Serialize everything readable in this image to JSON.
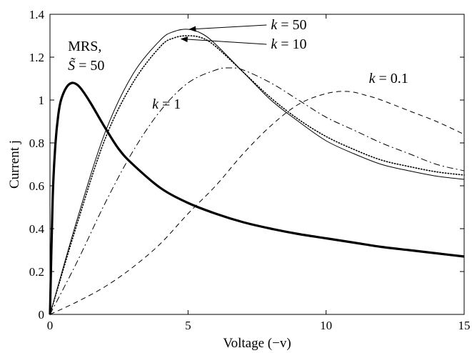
{
  "chart_data": {
    "type": "line",
    "xlabel": "Voltage (−v)",
    "ylabel": "Current j",
    "xlim": [
      0,
      15
    ],
    "ylim": [
      0,
      1.4
    ],
    "xticks": [
      "0",
      "5",
      "10",
      "15"
    ],
    "yticks": [
      "0",
      "0.2",
      "0.4",
      "0.6",
      "0.8",
      "1",
      "1.2",
      "1.4"
    ],
    "grid": false,
    "legend": "none",
    "series": [
      {
        "name": "MRS, S̃ = 50",
        "style": "thick-solid",
        "x": [
          0,
          0.1,
          0.2,
          0.3,
          0.4,
          0.6,
          0.8,
          1.0,
          1.2,
          1.5,
          2.0,
          2.5,
          3.0,
          4.0,
          5.0,
          6.0,
          7.0,
          8.0,
          9.0,
          10.0,
          11.0,
          12.0,
          13.0,
          14.0,
          15.0
        ],
        "y": [
          0,
          0.55,
          0.8,
          0.93,
          1.0,
          1.06,
          1.08,
          1.07,
          1.04,
          0.98,
          0.87,
          0.77,
          0.7,
          0.59,
          0.52,
          0.47,
          0.43,
          0.4,
          0.375,
          0.355,
          0.335,
          0.315,
          0.3,
          0.285,
          0.27
        ]
      },
      {
        "name": "k = 50",
        "style": "thin-solid",
        "x": [
          0,
          1,
          2,
          3,
          4,
          4.5,
          5,
          5.5,
          6,
          7,
          8,
          9,
          10,
          11,
          12,
          13,
          14,
          15
        ],
        "y": [
          0,
          0.45,
          0.85,
          1.12,
          1.28,
          1.32,
          1.33,
          1.31,
          1.26,
          1.13,
          1.0,
          0.9,
          0.81,
          0.75,
          0.7,
          0.67,
          0.645,
          0.63
        ]
      },
      {
        "name": "k = 10",
        "style": "dotted",
        "x": [
          0,
          1,
          2,
          3,
          4,
          4.5,
          5,
          5.5,
          6,
          7,
          8,
          9,
          10,
          11,
          12,
          13,
          14,
          15
        ],
        "y": [
          0,
          0.43,
          0.82,
          1.08,
          1.25,
          1.29,
          1.3,
          1.29,
          1.25,
          1.13,
          1.01,
          0.91,
          0.83,
          0.77,
          0.72,
          0.69,
          0.665,
          0.65
        ]
      },
      {
        "name": "k = 1",
        "style": "dash-dot",
        "x": [
          0,
          1,
          2,
          3,
          4,
          5,
          6,
          6.5,
          7,
          8,
          9,
          10,
          11,
          12,
          13,
          14,
          15
        ],
        "y": [
          0,
          0.25,
          0.52,
          0.76,
          0.95,
          1.08,
          1.14,
          1.15,
          1.14,
          1.08,
          1.0,
          0.92,
          0.86,
          0.8,
          0.75,
          0.7,
          0.67
        ]
      },
      {
        "name": "k = 0.1",
        "style": "dashed",
        "x": [
          0,
          1,
          2,
          3,
          4,
          5,
          6,
          7,
          8,
          9,
          10,
          10.8,
          11.5,
          12,
          13,
          14,
          15
        ],
        "y": [
          0,
          0.06,
          0.13,
          0.22,
          0.33,
          0.47,
          0.6,
          0.75,
          0.88,
          0.98,
          1.03,
          1.04,
          1.02,
          1.0,
          0.95,
          0.9,
          0.84
        ]
      }
    ],
    "annotations": [
      {
        "text_parts": [
          "k",
          " = 50"
        ],
        "tx": 8.0,
        "ty": 1.33,
        "arrow_to": [
          5.0,
          1.33
        ]
      },
      {
        "text_parts": [
          "k",
          " = 10"
        ],
        "tx": 8.0,
        "ty": 1.24,
        "arrow_to": [
          4.7,
          1.285
        ]
      },
      {
        "text_parts": [
          "k",
          " = 1"
        ],
        "tx": 3.7,
        "ty": 0.96
      },
      {
        "text_parts": [
          "k",
          " = 0.1"
        ],
        "tx": 11.55,
        "ty": 1.08
      },
      {
        "text_parts": [
          "MRS,"
        ],
        "tx": 0.65,
        "ty": 1.23
      },
      {
        "text_parts": [
          "S̃",
          " = 50"
        ],
        "tx": 0.65,
        "ty": 1.14
      }
    ]
  }
}
